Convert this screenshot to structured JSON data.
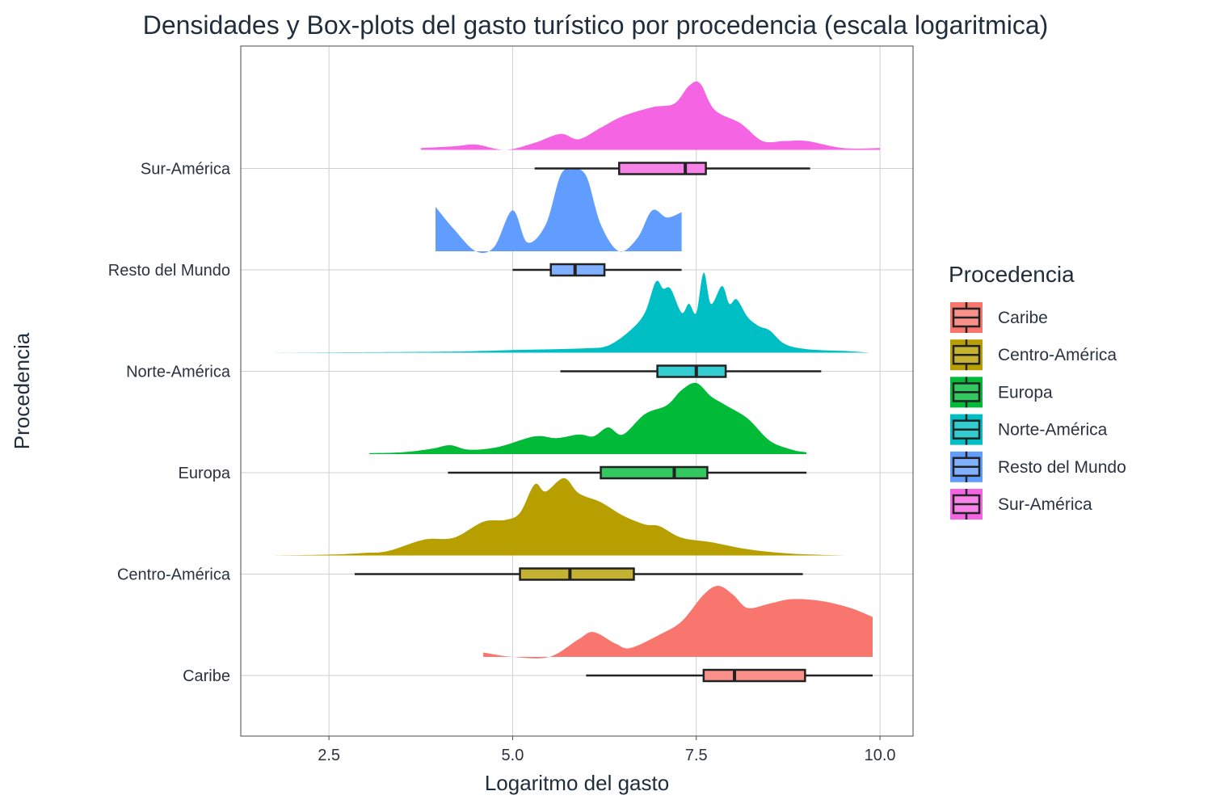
{
  "chart_data": {
    "type": "density-boxplot",
    "title": "Densidades y Box-plots del gasto turístico por procedencia (escala logaritmica)",
    "xlabel": "Logaritmo del gasto",
    "ylabel": "Procedencia",
    "xlim": [
      1.3,
      10.45
    ],
    "x_ticks": [
      2.5,
      5.0,
      7.5,
      10.0
    ],
    "x_tick_labels": [
      "2.5",
      "5.0",
      "7.5",
      "10.0"
    ],
    "grid": true,
    "legend": {
      "title": "Procedencia",
      "position": "right",
      "items": [
        "Caribe",
        "Centro-América",
        "Europa",
        "Norte-América",
        "Resto del Mundo",
        "Sur-América"
      ]
    },
    "categories": [
      "Caribe",
      "Centro-América",
      "Europa",
      "Norte-América",
      "Resto del Mundo",
      "Sur-América"
    ],
    "series": [
      {
        "name": "Caribe",
        "color": "#F8766D",
        "box": {
          "whisker_low": 6.0,
          "q1": 7.6,
          "median": 8.02,
          "q3": 8.98,
          "whisker_high": 9.9
        },
        "density": [
          [
            4.6,
            0.05
          ],
          [
            5.0,
            0.0
          ],
          [
            5.5,
            0.0
          ],
          [
            5.9,
            0.2
          ],
          [
            6.1,
            0.28
          ],
          [
            6.4,
            0.15
          ],
          [
            6.6,
            0.1
          ],
          [
            7.0,
            0.25
          ],
          [
            7.3,
            0.4
          ],
          [
            7.6,
            0.7
          ],
          [
            7.8,
            0.8
          ],
          [
            8.0,
            0.7
          ],
          [
            8.2,
            0.55
          ],
          [
            8.5,
            0.6
          ],
          [
            8.8,
            0.65
          ],
          [
            9.2,
            0.63
          ],
          [
            9.6,
            0.55
          ],
          [
            9.9,
            0.45
          ]
        ]
      },
      {
        "name": "Centro-América",
        "color": "#B79F00",
        "box": {
          "whisker_low": 2.85,
          "q1": 5.1,
          "median": 5.78,
          "q3": 6.65,
          "whisker_high": 8.95
        },
        "density": [
          [
            1.75,
            0.0
          ],
          [
            2.5,
            0.01
          ],
          [
            3.0,
            0.03
          ],
          [
            3.3,
            0.05
          ],
          [
            3.8,
            0.18
          ],
          [
            4.2,
            0.2
          ],
          [
            4.6,
            0.38
          ],
          [
            4.9,
            0.4
          ],
          [
            5.1,
            0.48
          ],
          [
            5.3,
            0.8
          ],
          [
            5.45,
            0.72
          ],
          [
            5.7,
            0.87
          ],
          [
            5.9,
            0.7
          ],
          [
            6.2,
            0.6
          ],
          [
            6.5,
            0.45
          ],
          [
            6.8,
            0.35
          ],
          [
            7.0,
            0.33
          ],
          [
            7.3,
            0.2
          ],
          [
            7.7,
            0.15
          ],
          [
            8.2,
            0.07
          ],
          [
            8.8,
            0.02
          ],
          [
            9.55,
            0.0
          ]
        ]
      },
      {
        "name": "Europa",
        "color": "#00BA38",
        "box": {
          "whisker_low": 4.12,
          "q1": 6.2,
          "median": 7.2,
          "q3": 7.65,
          "whisker_high": 9.0
        },
        "density": [
          [
            3.05,
            0.01
          ],
          [
            3.5,
            0.02
          ],
          [
            3.9,
            0.06
          ],
          [
            4.15,
            0.1
          ],
          [
            4.4,
            0.05
          ],
          [
            4.8,
            0.08
          ],
          [
            5.3,
            0.2
          ],
          [
            5.6,
            0.18
          ],
          [
            5.9,
            0.22
          ],
          [
            6.1,
            0.2
          ],
          [
            6.3,
            0.3
          ],
          [
            6.5,
            0.22
          ],
          [
            6.8,
            0.45
          ],
          [
            7.1,
            0.55
          ],
          [
            7.3,
            0.72
          ],
          [
            7.5,
            0.8
          ],
          [
            7.7,
            0.65
          ],
          [
            7.9,
            0.55
          ],
          [
            8.2,
            0.4
          ],
          [
            8.5,
            0.15
          ],
          [
            8.8,
            0.05
          ],
          [
            9.0,
            0.02
          ]
        ]
      },
      {
        "name": "Norte-América",
        "color": "#00BFC4",
        "box": {
          "whisker_low": 5.65,
          "q1": 6.97,
          "median": 7.5,
          "q3": 7.9,
          "whisker_high": 9.2
        },
        "density": [
          [
            1.6,
            0.0
          ],
          [
            4.0,
            0.01
          ],
          [
            4.6,
            0.02
          ],
          [
            5.0,
            0.03
          ],
          [
            5.6,
            0.04
          ],
          [
            6.0,
            0.05
          ],
          [
            6.3,
            0.08
          ],
          [
            6.6,
            0.25
          ],
          [
            6.8,
            0.45
          ],
          [
            6.95,
            0.8
          ],
          [
            7.05,
            0.72
          ],
          [
            7.15,
            0.72
          ],
          [
            7.3,
            0.45
          ],
          [
            7.4,
            0.55
          ],
          [
            7.5,
            0.45
          ],
          [
            7.6,
            0.9
          ],
          [
            7.7,
            0.55
          ],
          [
            7.85,
            0.75
          ],
          [
            7.95,
            0.55
          ],
          [
            8.05,
            0.6
          ],
          [
            8.2,
            0.4
          ],
          [
            8.35,
            0.3
          ],
          [
            8.5,
            0.25
          ],
          [
            8.7,
            0.1
          ],
          [
            9.0,
            0.04
          ],
          [
            9.5,
            0.02
          ],
          [
            9.85,
            0.0
          ]
        ]
      },
      {
        "name": "Resto del Mundo",
        "color": "#619CFF",
        "box": {
          "whisker_low": 5.0,
          "q1": 5.52,
          "median": 5.85,
          "q3": 6.25,
          "whisker_high": 7.3
        },
        "density": [
          [
            3.95,
            0.5
          ],
          [
            4.2,
            0.25
          ],
          [
            4.5,
            0.0
          ],
          [
            4.75,
            0.05
          ],
          [
            5.0,
            0.46
          ],
          [
            5.2,
            0.1
          ],
          [
            5.45,
            0.3
          ],
          [
            5.65,
            0.85
          ],
          [
            5.8,
            0.92
          ],
          [
            6.0,
            0.85
          ],
          [
            6.2,
            0.3
          ],
          [
            6.45,
            0.0
          ],
          [
            6.7,
            0.15
          ],
          [
            6.9,
            0.46
          ],
          [
            7.1,
            0.38
          ],
          [
            7.3,
            0.44
          ]
        ]
      },
      {
        "name": "Sur-América",
        "color": "#F564E3",
        "box": {
          "whisker_low": 5.3,
          "q1": 6.45,
          "median": 7.35,
          "q3": 7.63,
          "whisker_high": 9.05
        },
        "density": [
          [
            3.75,
            0.02
          ],
          [
            4.2,
            0.04
          ],
          [
            4.5,
            0.06
          ],
          [
            4.9,
            0.0
          ],
          [
            5.3,
            0.08
          ],
          [
            5.65,
            0.18
          ],
          [
            5.9,
            0.12
          ],
          [
            6.2,
            0.25
          ],
          [
            6.5,
            0.38
          ],
          [
            6.9,
            0.48
          ],
          [
            7.2,
            0.52
          ],
          [
            7.4,
            0.72
          ],
          [
            7.55,
            0.75
          ],
          [
            7.75,
            0.45
          ],
          [
            8.1,
            0.3
          ],
          [
            8.4,
            0.1
          ],
          [
            8.7,
            0.1
          ],
          [
            9.0,
            0.1
          ],
          [
            9.5,
            0.02
          ],
          [
            10.0,
            0.02
          ]
        ]
      }
    ]
  }
}
